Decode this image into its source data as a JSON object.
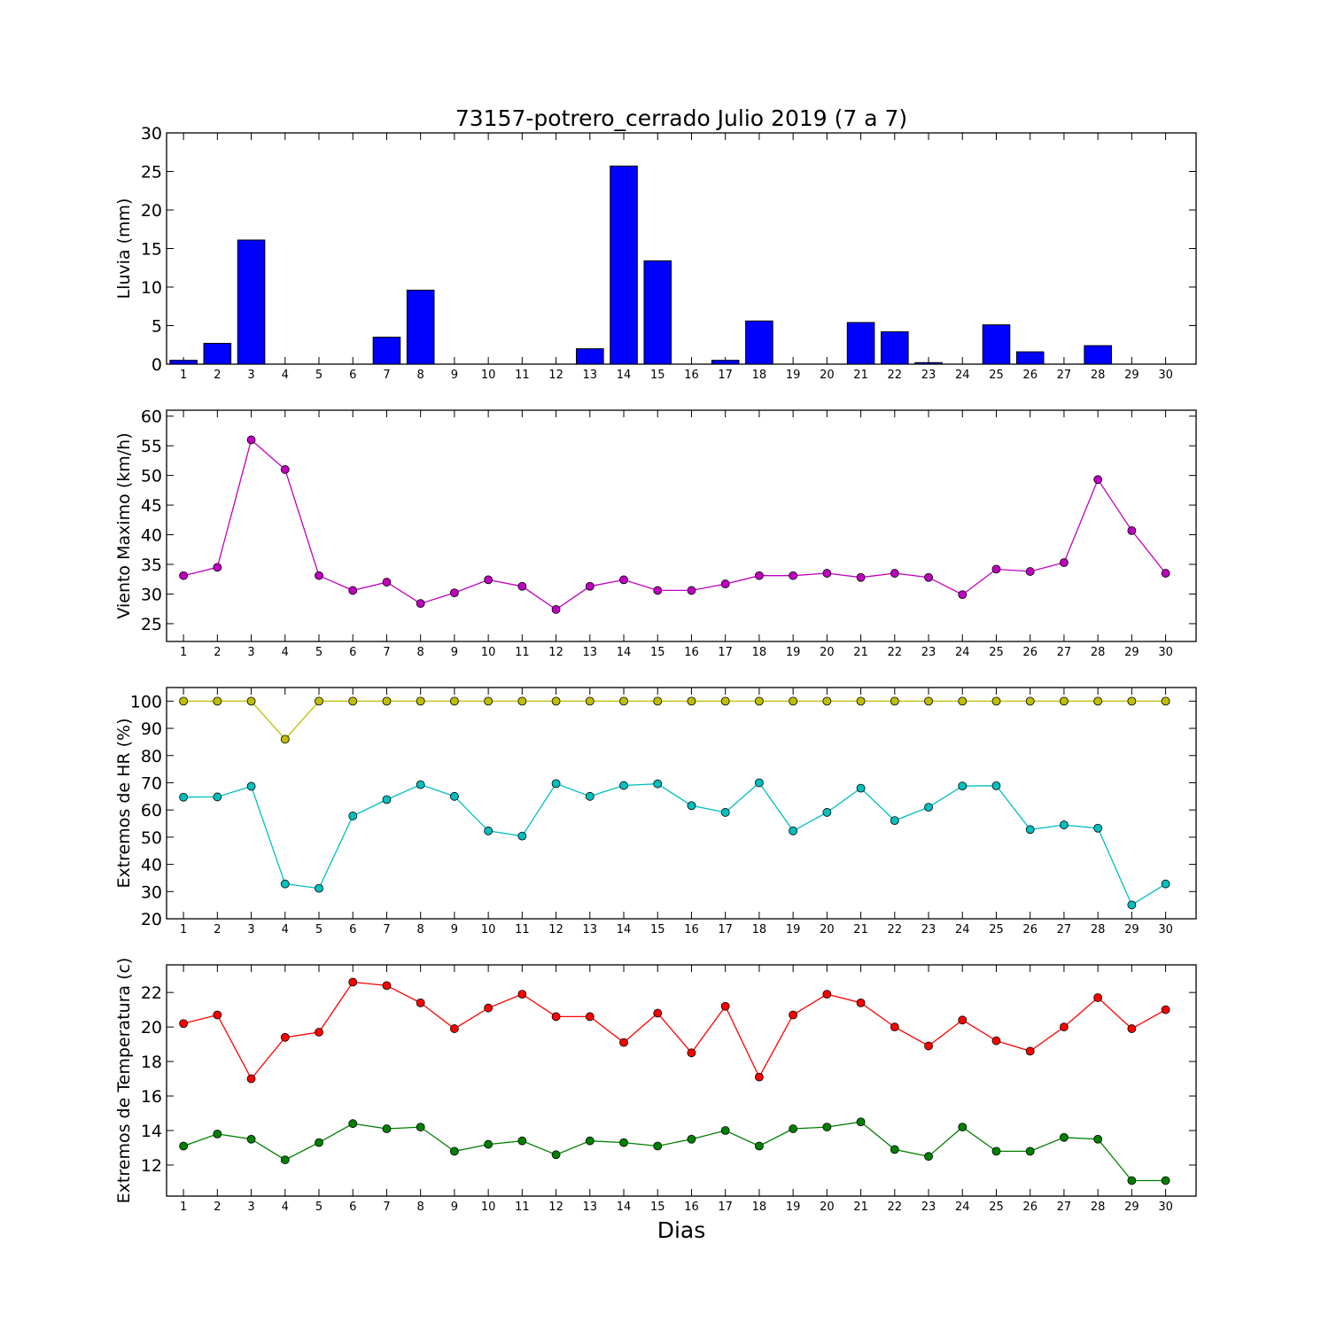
{
  "figure": {
    "title": "73157-potrero_cerrado Julio 2019  (7 a 7)",
    "xlabel": "Dias"
  },
  "chart_data": [
    {
      "type": "bar",
      "ylabel": "Lluvia (mm)",
      "ylim": [
        0,
        30
      ],
      "yticks": [
        0,
        5,
        10,
        15,
        20,
        25,
        30
      ],
      "categories": [
        1,
        2,
        3,
        4,
        5,
        6,
        7,
        8,
        9,
        10,
        11,
        12,
        13,
        14,
        15,
        16,
        17,
        18,
        19,
        20,
        21,
        22,
        23,
        24,
        25,
        26,
        27,
        28,
        29,
        30
      ],
      "series": [
        {
          "color": "#0000ff",
          "values": [
            0.5,
            2.7,
            16.1,
            0,
            0,
            0,
            3.5,
            9.6,
            0,
            0,
            0,
            0,
            2.0,
            25.7,
            13.4,
            0,
            0.5,
            5.6,
            0,
            0,
            5.4,
            4.2,
            0.2,
            0,
            5.1,
            1.6,
            0,
            2.4,
            0,
            0
          ]
        }
      ],
      "grid": false
    },
    {
      "type": "line",
      "ylabel": "Viento Maximo (km/h)",
      "ylim": [
        22,
        61
      ],
      "yticks": [
        25,
        30,
        35,
        40,
        45,
        50,
        55,
        60
      ],
      "categories": [
        1,
        2,
        3,
        4,
        5,
        6,
        7,
        8,
        9,
        10,
        11,
        12,
        13,
        14,
        15,
        16,
        17,
        18,
        19,
        20,
        21,
        22,
        23,
        24,
        25,
        26,
        27,
        28,
        29,
        30
      ],
      "series": [
        {
          "color": "#bf00bf",
          "values": [
            33.1,
            34.5,
            56.0,
            51.0,
            33.1,
            30.6,
            32.0,
            28.4,
            30.2,
            32.4,
            31.3,
            27.4,
            31.3,
            32.4,
            30.6,
            30.6,
            31.7,
            33.1,
            33.1,
            33.5,
            32.8,
            33.5,
            32.8,
            29.9,
            34.2,
            33.8,
            35.3,
            49.3,
            40.7,
            33.5
          ]
        }
      ],
      "grid": false
    },
    {
      "type": "line",
      "ylabel": "Extremos de HR (%)",
      "ylim": [
        20,
        105
      ],
      "yticks": [
        20,
        30,
        40,
        50,
        60,
        70,
        80,
        90,
        100
      ],
      "categories": [
        1,
        2,
        3,
        4,
        5,
        6,
        7,
        8,
        9,
        10,
        11,
        12,
        13,
        14,
        15,
        16,
        17,
        18,
        19,
        20,
        21,
        22,
        23,
        24,
        25,
        26,
        27,
        28,
        29,
        30
      ],
      "series": [
        {
          "color": "#bfbf00",
          "values": [
            100,
            100,
            100,
            86,
            100,
            100,
            100,
            100,
            100,
            100,
            100,
            100,
            100,
            100,
            100,
            100,
            100,
            100,
            100,
            100,
            100,
            100,
            100,
            100,
            100,
            100,
            100,
            100,
            100,
            100
          ]
        },
        {
          "color": "#00bfbf",
          "values": [
            64.7,
            64.8,
            68.7,
            32.8,
            31.2,
            57.8,
            63.8,
            69.3,
            65.0,
            52.3,
            50.4,
            69.7,
            65.0,
            69.0,
            69.6,
            61.6,
            59.1,
            70.0,
            52.3,
            59.1,
            68.0,
            56.1,
            61.0,
            68.8,
            68.9,
            52.8,
            54.5,
            53.3,
            25.1,
            32.8
          ]
        }
      ],
      "grid": false
    },
    {
      "type": "line",
      "ylabel": "Extremos de Temperatura (c)",
      "ylim": [
        10.2,
        23.6
      ],
      "yticks": [
        12,
        14,
        16,
        18,
        20,
        22
      ],
      "categories": [
        1,
        2,
        3,
        4,
        5,
        6,
        7,
        8,
        9,
        10,
        11,
        12,
        13,
        14,
        15,
        16,
        17,
        18,
        19,
        20,
        21,
        22,
        23,
        24,
        25,
        26,
        27,
        28,
        29,
        30
      ],
      "series": [
        {
          "color": "#ff0000",
          "values": [
            20.2,
            20.7,
            17.0,
            19.4,
            19.7,
            22.6,
            22.4,
            21.4,
            19.9,
            21.1,
            21.9,
            20.6,
            20.6,
            19.1,
            20.8,
            18.5,
            21.2,
            17.1,
            20.7,
            21.9,
            21.4,
            20.0,
            18.9,
            20.4,
            19.2,
            18.6,
            20.0,
            21.7,
            19.9,
            21.0
          ]
        },
        {
          "color": "#008000",
          "values": [
            13.1,
            13.8,
            13.5,
            12.3,
            13.3,
            14.4,
            14.1,
            14.2,
            12.8,
            13.2,
            13.4,
            12.6,
            13.4,
            13.3,
            13.1,
            13.5,
            14.0,
            13.1,
            14.1,
            14.2,
            14.5,
            12.9,
            12.5,
            14.2,
            12.8,
            12.8,
            13.6,
            13.5,
            11.1,
            11.1
          ]
        }
      ],
      "grid": false
    }
  ]
}
